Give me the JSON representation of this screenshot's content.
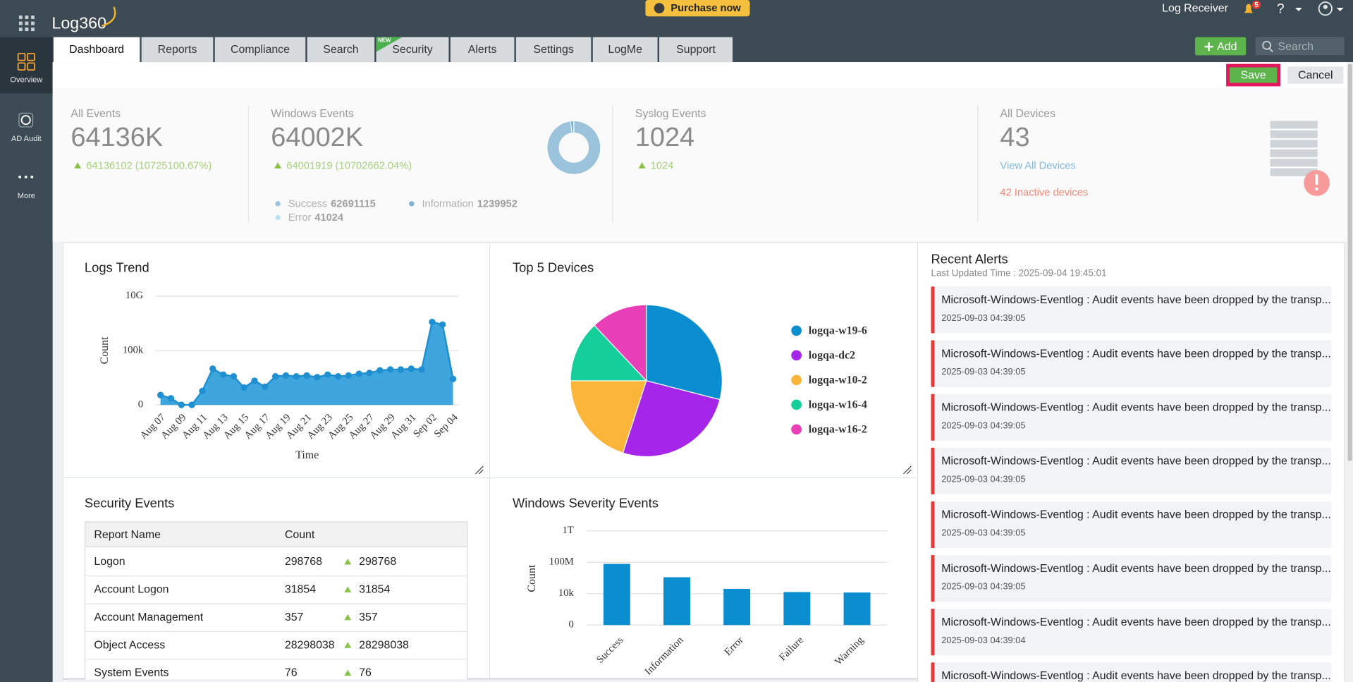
{
  "header": {
    "logo": "Log360",
    "purchase": "Purchase now",
    "product": "Log Receiver",
    "notifications": "5",
    "help": "?",
    "add": "Add",
    "search_placeholder": "Search"
  },
  "sidebar": [
    "Overview",
    "AD Audit",
    "More"
  ],
  "tabs": {
    "items": [
      "Dashboard",
      "Reports",
      "Compliance",
      "Search",
      "Security",
      "Alerts",
      "Settings",
      "LogMe",
      "Support"
    ],
    "new_badge": "NEW",
    "active": 0
  },
  "toolbar": {
    "save": "Save",
    "cancel": "Cancel"
  },
  "summary": {
    "all_events": {
      "label": "All Events",
      "total": "64136K",
      "change": "64136102 (10725100.67%)"
    },
    "windows_events": {
      "label": "Windows Events",
      "total": "64002K",
      "change": "64001919 (10702662.04%)",
      "breakdown": [
        {
          "name": "Success",
          "value": 62691115,
          "color": "#9cc3dc"
        },
        {
          "name": "Information",
          "value": 1239952,
          "color": "#7fb2d2"
        },
        {
          "name": "Error",
          "value": 41024,
          "color": "#b8e4f0"
        }
      ]
    },
    "syslog_events": {
      "label": "Syslog Events",
      "total": "1024",
      "change": "1024"
    },
    "all_devices": {
      "label": "All Devices",
      "total": "43",
      "link": "View All Devices",
      "inactive": "42 Inactive devices"
    }
  },
  "chart_data": [
    {
      "type": "area",
      "title": "Logs Trend",
      "y_label": "Count",
      "x_label": "Time",
      "categories": [
        "Aug 07",
        null,
        "Aug 09",
        null,
        "Aug 11",
        null,
        "Aug 13",
        null,
        "Aug 15",
        null,
        "Aug 17",
        null,
        "Aug 19",
        null,
        "Aug 21",
        null,
        "Aug 23",
        null,
        "Aug 25",
        null,
        "Aug 27",
        null,
        "Aug 29",
        null,
        "Aug 31",
        null,
        "Sep 02",
        null,
        "Sep 04"
      ],
      "values": [
        7,
        3,
        0,
        0,
        18,
        2100,
        600,
        420,
        38,
        165,
        46,
        420,
        500,
        420,
        500,
        350,
        600,
        420,
        500,
        720,
        870,
        1480,
        1780,
        1780,
        2100,
        1780,
        42000000,
        24000000,
        240
      ],
      "color": "#3ea6dd",
      "line_color": "#1e8fd0",
      "ylim": [
        0,
        10000000000
      ],
      "yticks": [
        0,
        {
          "value": 100000,
          "label": "100k"
        },
        {
          "value": 10000000000,
          "label": "10G"
        }
      ],
      "log_scale": true,
      "grid": true
    },
    {
      "type": "pie",
      "title": "Top 5 Devices",
      "categories": [
        "logqa-w19-6",
        "logqa-dc2",
        "logqa-w10-2",
        "logqa-w16-4",
        "logqa-w16-2"
      ],
      "values": [
        29,
        26,
        20,
        13,
        12
      ],
      "colors": [
        "#0b8ecf",
        "#a526e8",
        "#fbb538",
        "#14cf9a",
        "#e83eb8"
      ]
    },
    {
      "type": "bar",
      "title": "Windows Severity Events",
      "y_label": "Count",
      "categories": [
        "Success",
        "Information",
        "Error",
        "Failure",
        "Warning"
      ],
      "values": [
        62691115,
        1239952,
        41024,
        16000,
        14000
      ],
      "color": "#0b8ecf",
      "ylim": [
        0,
        1000000000000
      ],
      "yticks": [
        0,
        {
          "value": 10000,
          "label": "10k"
        },
        {
          "value": 100000000,
          "label": "100M"
        },
        {
          "value": 1000000000000,
          "label": "1T"
        }
      ],
      "log_scale": true,
      "grid": true
    }
  ],
  "security_events": {
    "title": "Security Events",
    "columns": [
      "Report Name",
      "Count"
    ],
    "rows": [
      [
        "Logon",
        298768,
        298768
      ],
      [
        "Account Logon",
        31854,
        31854
      ],
      [
        "Account Management",
        357,
        357
      ],
      [
        "Object Access",
        28298038,
        28298038
      ],
      [
        "System Events",
        76,
        76
      ]
    ]
  },
  "recent_alerts": {
    "title": "Recent Alerts",
    "updated": "Last Updated Time : 2025-09-04 19:45:01",
    "items": [
      {
        "message": "Microsoft-Windows-Eventlog : Audit events have been dropped by the transp...",
        "time": "2025-09-03 04:39:05"
      },
      {
        "message": "Microsoft-Windows-Eventlog : Audit events have been dropped by the transp...",
        "time": "2025-09-03 04:39:05"
      },
      {
        "message": "Microsoft-Windows-Eventlog : Audit events have been dropped by the transp...",
        "time": "2025-09-03 04:39:05"
      },
      {
        "message": "Microsoft-Windows-Eventlog : Audit events have been dropped by the transp...",
        "time": "2025-09-03 04:39:05"
      },
      {
        "message": "Microsoft-Windows-Eventlog : Audit events have been dropped by the transp...",
        "time": "2025-09-03 04:39:05"
      },
      {
        "message": "Microsoft-Windows-Eventlog : Audit events have been dropped by the transp...",
        "time": "2025-09-03 04:39:05"
      },
      {
        "message": "Microsoft-Windows-Eventlog : Audit events have been dropped by the transp...",
        "time": "2025-09-03 04:39:04"
      },
      {
        "message": "Microsoft-Windows-Eventlog : Audit events have been dropped by the transp..."
      }
    ]
  }
}
